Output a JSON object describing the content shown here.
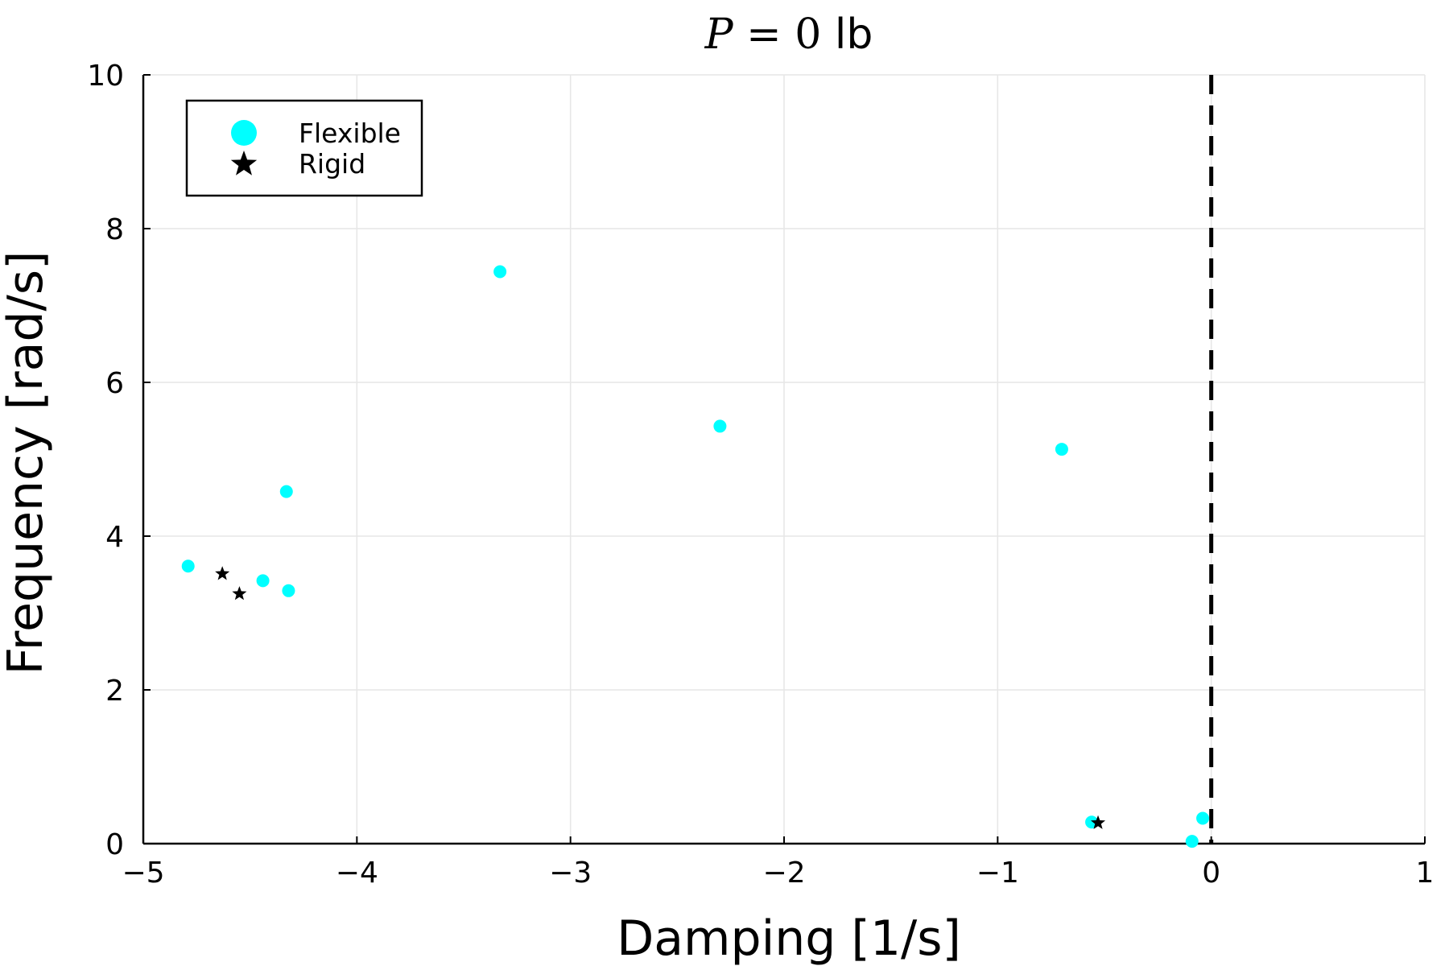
{
  "chart_data": {
    "type": "scatter",
    "title": {
      "variable": "P",
      "equals": " = ",
      "value": "0",
      "unit": " lb"
    },
    "xlabel": "Damping [1/s]",
    "ylabel": "Frequency [rad/s]",
    "xlim": [
      -5,
      1
    ],
    "ylim": [
      0,
      10
    ],
    "xticks": [
      -5,
      -4,
      -3,
      -2,
      -1,
      0,
      1
    ],
    "xtick_labels": [
      "−5",
      "−4",
      "−3",
      "−2",
      "−1",
      "0",
      "1"
    ],
    "yticks": [
      0,
      2,
      4,
      6,
      8,
      10
    ],
    "ytick_labels": [
      "0",
      "2",
      "4",
      "6",
      "8",
      "10"
    ],
    "grid": true,
    "legend_position": "top-left",
    "reference_line": {
      "x": 0,
      "style": "dashed",
      "color": "#000000"
    },
    "series": [
      {
        "name": "Flexible",
        "marker": "circle",
        "color": "#00FFFF",
        "points": [
          [
            -3.33,
            7.44
          ],
          [
            -2.3,
            5.43
          ],
          [
            -0.7,
            5.13
          ],
          [
            -4.33,
            4.58
          ],
          [
            -4.79,
            3.61
          ],
          [
            -4.44,
            3.42
          ],
          [
            -4.32,
            3.29
          ],
          [
            -0.56,
            0.28
          ],
          [
            -0.04,
            0.33
          ],
          [
            -0.09,
            0.03
          ]
        ]
      },
      {
        "name": "Rigid",
        "marker": "star",
        "color": "#000000",
        "points": [
          [
            -4.63,
            3.51
          ],
          [
            -4.55,
            3.25
          ],
          [
            -0.53,
            0.27
          ]
        ]
      }
    ]
  }
}
